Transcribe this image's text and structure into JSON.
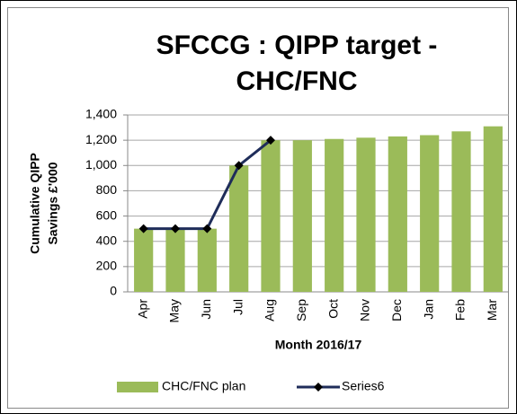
{
  "chart_data": {
    "type": "bar",
    "title": [
      "SFCCG : QIPP target  -",
      "CHC/FNC"
    ],
    "y_label": [
      "Cumulative QIPP",
      "Savings £'000"
    ],
    "x_label": "Month 2016/17",
    "categories": [
      "Apr",
      "May",
      "Jun",
      "Jul",
      "Aug",
      "Sep",
      "Oct",
      "Nov",
      "Dec",
      "Jan",
      "Feb",
      "Mar"
    ],
    "series": [
      {
        "name": "CHC/FNC plan",
        "type": "bar",
        "color": "#9bbb59",
        "values": [
          500,
          500,
          500,
          1000,
          1200,
          1200,
          1210,
          1220,
          1230,
          1240,
          1270,
          1310
        ]
      },
      {
        "name": "Series6",
        "type": "line",
        "color": "#1f2d5a",
        "values": [
          500,
          500,
          500,
          1000,
          1200,
          null,
          null,
          null,
          null,
          null,
          null,
          null
        ]
      }
    ],
    "ylim": [
      0,
      1400
    ],
    "yticks": [
      0,
      200,
      400,
      600,
      800,
      {
        "value": 1000,
        "label": "1,000"
      },
      {
        "value": 1200,
        "label": "1,200"
      },
      {
        "value": 1400,
        "label": "1,400"
      }
    ],
    "grid": true,
    "legend": "bottom"
  }
}
